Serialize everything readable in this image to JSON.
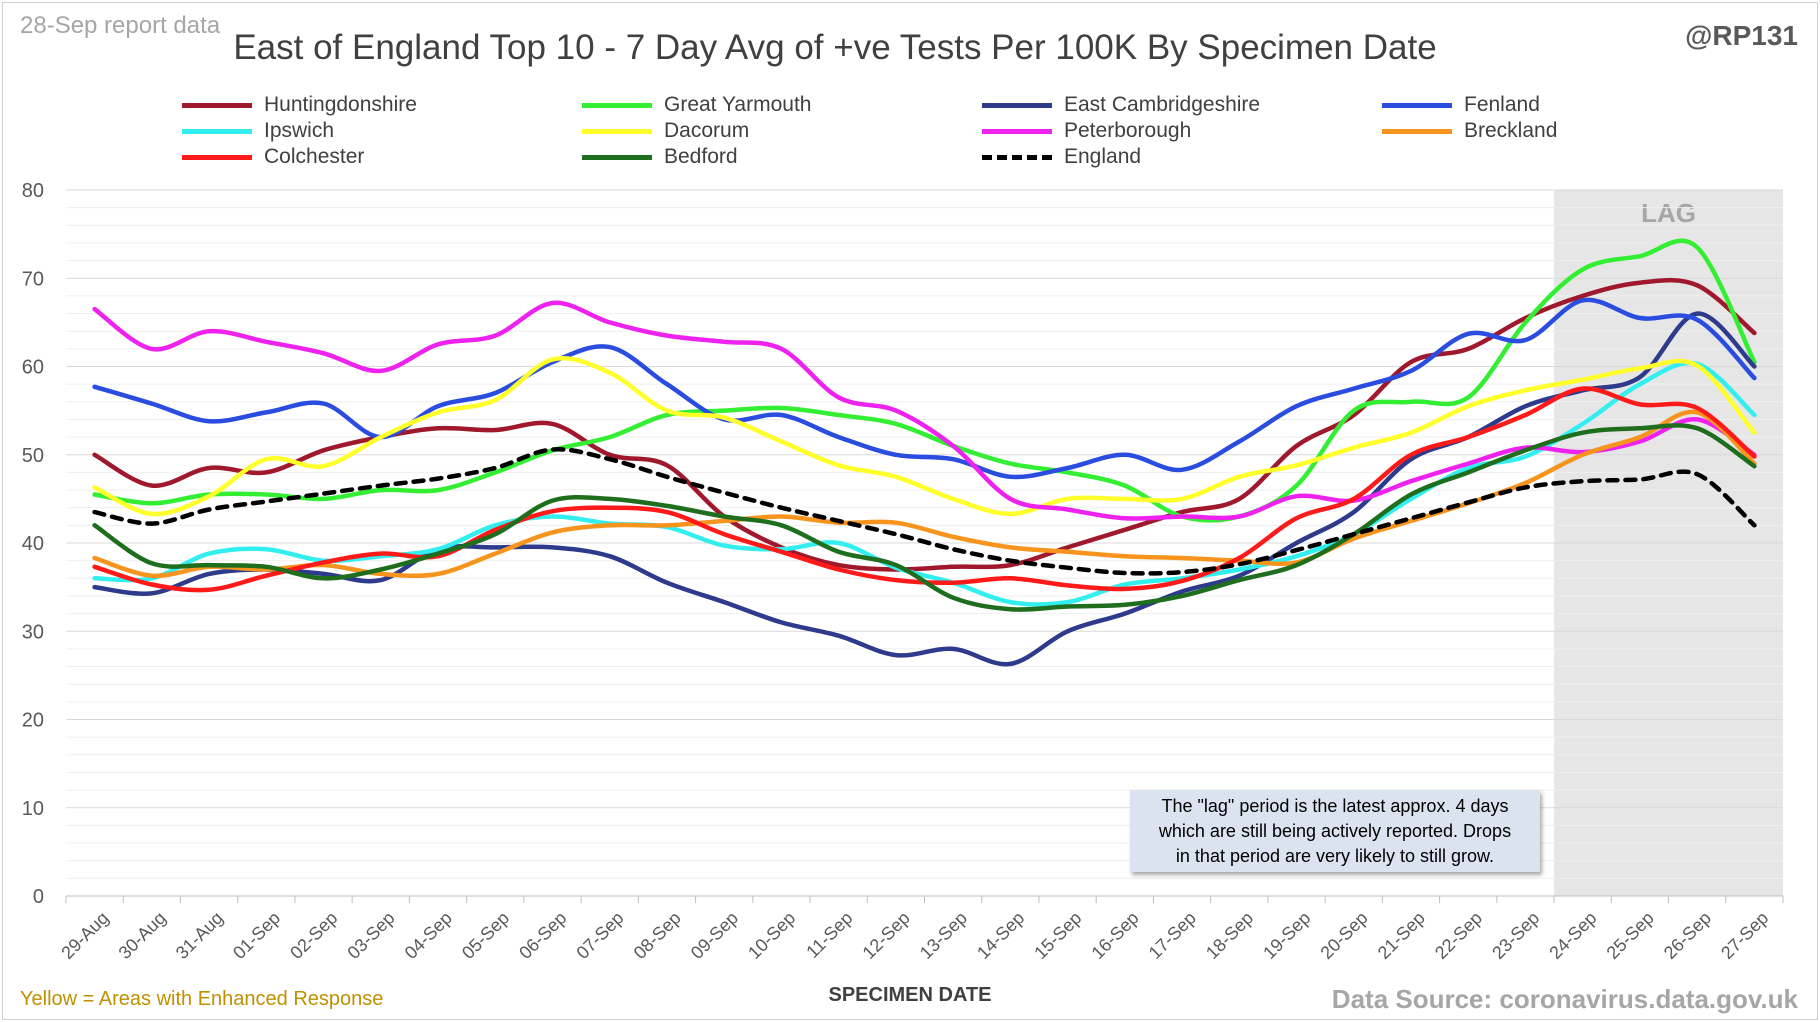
{
  "header": {
    "report_date": "28-Sep report data",
    "handle": "@RP131"
  },
  "footer": {
    "enhanced_note": "Yellow = Areas with Enhanced Response",
    "source": "Data Source: coronavirus.data.gov.uk"
  },
  "annotation": {
    "lag_note_line1": "The \"lag\" period is the latest approx. 4 days",
    "lag_note_line2": "which are still being actively reported.  Drops",
    "lag_note_line3": "in that period are very likely to still grow."
  },
  "chart_data": {
    "type": "line",
    "title": "East of England Top 10 - 7 Day Avg of +ve Tests Per 100K By Specimen Date",
    "xlabel": "SPECIMEN DATE",
    "ylabel": "",
    "ylim": [
      0,
      80
    ],
    "yticks": [
      0,
      10,
      20,
      30,
      40,
      50,
      60,
      70,
      80
    ],
    "grid": true,
    "legend_position": "top",
    "shaded_region": {
      "label": "LAG",
      "from": "24-Sep",
      "to": "27-Sep",
      "color": "#e6e6e6"
    },
    "categories": [
      "29-Aug",
      "30-Aug",
      "31-Aug",
      "01-Sep",
      "02-Sep",
      "03-Sep",
      "04-Sep",
      "05-Sep",
      "06-Sep",
      "07-Sep",
      "08-Sep",
      "09-Sep",
      "10-Sep",
      "11-Sep",
      "12-Sep",
      "13-Sep",
      "14-Sep",
      "15-Sep",
      "16-Sep",
      "17-Sep",
      "18-Sep",
      "19-Sep",
      "20-Sep",
      "21-Sep",
      "22-Sep",
      "23-Sep",
      "24-Sep",
      "25-Sep",
      "26-Sep",
      "27-Sep"
    ],
    "series": [
      {
        "name": "Huntingdonshire",
        "color": "#a0182c",
        "dashed": false,
        "values": [
          50,
          46.5,
          48.5,
          48,
          50.5,
          52,
          53,
          52.8,
          53.5,
          50,
          48.8,
          43,
          39.5,
          37.5,
          37,
          37.3,
          37.5,
          39.5,
          41.5,
          43.5,
          45,
          51,
          54.5,
          60.5,
          62,
          65.5,
          68,
          69.5,
          69.2,
          63.8
        ]
      },
      {
        "name": "Great Yarmouth",
        "color": "#33ee33",
        "dashed": false,
        "values": [
          45.5,
          44.5,
          45.5,
          45.5,
          45,
          46,
          46,
          48,
          50.5,
          52,
          54.5,
          55,
          55.3,
          54.5,
          53.5,
          51,
          49,
          48,
          46.5,
          43,
          43,
          46.5,
          55,
          56,
          56.5,
          65,
          71,
          72.5,
          73.5,
          60.5
        ]
      },
      {
        "name": "East Cambridgeshire",
        "color": "#2e3a8c",
        "dashed": false,
        "values": [
          35,
          34.3,
          36.5,
          37,
          36.5,
          35.8,
          39.3,
          39.5,
          39.5,
          38.5,
          35.5,
          33.3,
          31,
          29.5,
          27.3,
          28,
          26.3,
          30,
          32,
          34.5,
          36.3,
          40,
          43.5,
          49.5,
          52,
          55.5,
          57.3,
          58.8,
          66,
          60
        ]
      },
      {
        "name": "Fenland",
        "color": "#2a4de0",
        "dashed": false,
        "values": [
          57.7,
          55.8,
          53.8,
          54.8,
          55.8,
          52,
          55.5,
          57,
          60.5,
          62.2,
          58,
          54,
          54.5,
          52,
          50,
          49.5,
          47.5,
          48.5,
          50,
          48.3,
          51.5,
          55.5,
          57.5,
          59.5,
          63.7,
          63,
          67.5,
          65.5,
          65.3,
          58.7
        ]
      },
      {
        "name": "Ipswich",
        "color": "#33eeee",
        "dashed": false,
        "values": [
          36,
          36,
          38.8,
          39.3,
          38,
          38.5,
          39.3,
          42,
          43,
          42.2,
          41.8,
          39.7,
          39.3,
          40,
          37.2,
          35.5,
          33.3,
          33.3,
          35.3,
          36,
          37,
          38.5,
          41,
          45,
          48.5,
          49.8,
          53.5,
          58,
          60.3,
          54.5
        ]
      },
      {
        "name": "Dacorum",
        "color": "#ffff2a",
        "dashed": false,
        "values": [
          46.3,
          43.3,
          45.3,
          49.5,
          48.7,
          52,
          54.8,
          56.2,
          60.8,
          59.3,
          55,
          54.2,
          51.5,
          48.8,
          47.5,
          45,
          43.3,
          45,
          45,
          45,
          47.5,
          48.8,
          50.8,
          52.5,
          55.5,
          57.3,
          58.5,
          59.8,
          60.1,
          52.5
        ]
      },
      {
        "name": "Peterborough",
        "color": "#ee22ee",
        "dashed": false,
        "values": [
          66.5,
          62,
          64,
          62.8,
          61.5,
          59.5,
          62.5,
          63.5,
          67.2,
          65,
          63.5,
          62.8,
          62,
          56.5,
          55,
          51,
          45,
          43.8,
          42.8,
          43,
          43,
          45.3,
          44.8,
          47,
          49,
          50.8,
          50.3,
          51.5,
          54,
          50
        ]
      },
      {
        "name": "Breckland",
        "color": "#f7941d",
        "dashed": false,
        "values": [
          38.3,
          36.3,
          37.3,
          37,
          37.5,
          36.5,
          36.5,
          38.8,
          41.2,
          42,
          42,
          42.5,
          43,
          42.3,
          42.3,
          40.7,
          39.5,
          39,
          38.5,
          38.3,
          38,
          37.8,
          40.5,
          42.5,
          44.5,
          46.8,
          50,
          52,
          54.8,
          49
        ]
      },
      {
        "name": "Colchester",
        "color": "#ff1a1a",
        "dashed": false,
        "values": [
          37.3,
          35.3,
          34.7,
          36.3,
          37.8,
          38.8,
          38.5,
          41.5,
          43.6,
          44,
          43.5,
          41,
          39,
          37,
          35.8,
          35.5,
          36,
          35.2,
          34.8,
          35.7,
          38.3,
          42.8,
          45,
          50,
          52,
          54.5,
          57.5,
          55.7,
          55.3,
          49.8
        ]
      },
      {
        "name": "Bedford",
        "color": "#1e6e1e",
        "dashed": false,
        "values": [
          42,
          37.7,
          37.5,
          37.3,
          36,
          37,
          38.8,
          41,
          44.8,
          45,
          44.2,
          43,
          42,
          39,
          37.5,
          33.8,
          32.5,
          32.8,
          33,
          34,
          35.8,
          37.5,
          41,
          45.5,
          48,
          50.5,
          52.5,
          53,
          53,
          48.7
        ]
      },
      {
        "name": "England",
        "color": "#000000",
        "dashed": true,
        "values": [
          43.5,
          42.2,
          43.8,
          44.7,
          45.6,
          46.5,
          47.3,
          48.5,
          50.6,
          49.5,
          47.5,
          45.7,
          44,
          42.5,
          41,
          39.3,
          38,
          37.2,
          36.6,
          36.7,
          37.6,
          39.2,
          41,
          42.8,
          44.6,
          46.3,
          47,
          47.2,
          47.8,
          42
        ]
      }
    ]
  }
}
